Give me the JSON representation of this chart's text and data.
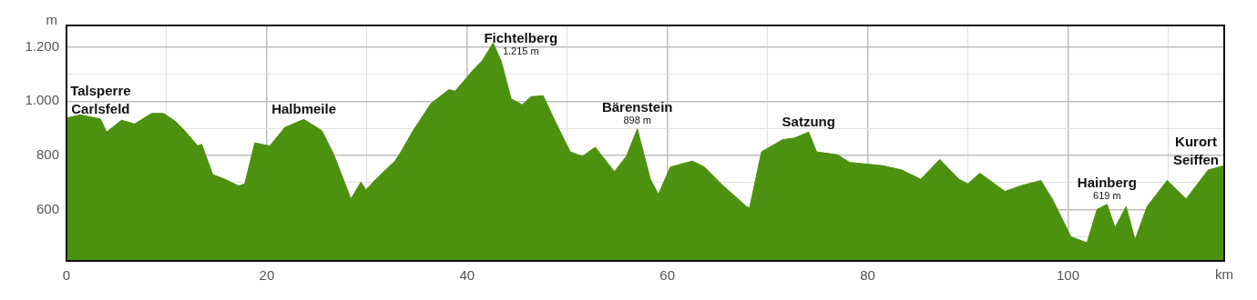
{
  "chart_data": {
    "type": "area",
    "xlabel": "km",
    "ylabel": "m",
    "color": "#4c9110",
    "x": [
      0,
      1.4,
      1.6,
      3.4,
      4.0,
      5.5,
      6.8,
      8.5,
      9.7,
      10.9,
      11.8,
      13.1,
      13.5,
      14.6,
      15.8,
      17.2,
      17.8,
      18.8,
      20.3,
      21.8,
      23.7,
      25.5,
      26.7,
      28.4,
      29.4,
      29.9,
      31.2,
      32.8,
      33.4,
      34.6,
      36.4,
      38.2,
      38.8,
      40.6,
      41.5,
      42.6,
      43.4,
      44.4,
      45.5,
      46.4,
      47.6,
      48.8,
      50.3,
      51.5,
      52.8,
      54.7,
      55.9,
      57.0,
      58.3,
      59.1,
      60.3,
      62.5,
      63.7,
      65.5,
      67.9,
      68.2,
      69.4,
      71.5,
      72.7,
      74.1,
      74.9,
      77.0,
      78.2,
      81.5,
      83.4,
      85.3,
      87.2,
      89.1,
      90.0,
      91.2,
      93.7,
      95.5,
      97.3,
      98.5,
      100.3,
      101.9,
      102.9,
      103.9,
      104.7,
      105.8,
      106.7,
      107.9,
      109.9,
      111.8,
      114.0,
      115.6
    ],
    "values": [
      938,
      950,
      948,
      934,
      886,
      930,
      916,
      955,
      955,
      925,
      891,
      835,
      841,
      729,
      712,
      687,
      695,
      846,
      835,
      903,
      933,
      891,
      802,
      639,
      701,
      673,
      723,
      779,
      813,
      891,
      992,
      1043,
      1037,
      1115,
      1149,
      1215,
      1149,
      1009,
      987,
      1017,
      1020,
      925,
      813,
      796,
      830,
      740,
      796,
      898,
      712,
      656,
      757,
      779,
      757,
      690,
      611,
      605,
      813,
      858,
      864,
      886,
      813,
      802,
      774,
      762,
      746,
      712,
      785,
      712,
      695,
      734,
      667,
      690,
      707,
      634,
      499,
      477,
      600,
      619,
      533,
      611,
      488,
      611,
      707,
      639,
      746,
      762
    ],
    "xlim": [
      0,
      115.6
    ],
    "xticks": [
      0,
      {
        "value": 10,
        "label": null
      },
      20,
      {
        "value": 30,
        "label": null
      },
      40,
      {
        "value": 50,
        "label": null
      },
      60,
      {
        "value": 70,
        "label": null
      },
      80,
      {
        "value": 90,
        "label": null
      },
      100,
      {
        "value": 110,
        "label": null
      }
    ],
    "ylim": [
      410,
      1280
    ],
    "yticks": [
      {
        "value": 500,
        "label": null
      },
      600,
      {
        "value": 700,
        "label": null
      },
      800,
      {
        "value": 900,
        "label": null
      },
      {
        "value": 1000,
        "label": "1.000"
      },
      {
        "value": 1100,
        "label": null
      },
      {
        "value": 1200,
        "label": "1.200"
      }
    ],
    "grid": true,
    "legend": false,
    "annotations": [
      {
        "text": "Talsperre\nCarlsfeld",
        "x": 3.4,
        "y": 934
      },
      {
        "text": "Halbmeile",
        "x": 23.7,
        "y": 933
      },
      {
        "text": "Fichtelberg\n1.215 m",
        "x": 42.6,
        "y": 1215
      },
      {
        "text": "Bärenstein\n898 m",
        "x": 57.0,
        "y": 898
      },
      {
        "text": "Satzung",
        "x": 74.1,
        "y": 886
      },
      {
        "text": "Hainberg\n619 m",
        "x": 103.9,
        "y": 619
      },
      {
        "text": "Kurort\nSeiffen",
        "x": 114.0,
        "y": 746
      }
    ]
  }
}
